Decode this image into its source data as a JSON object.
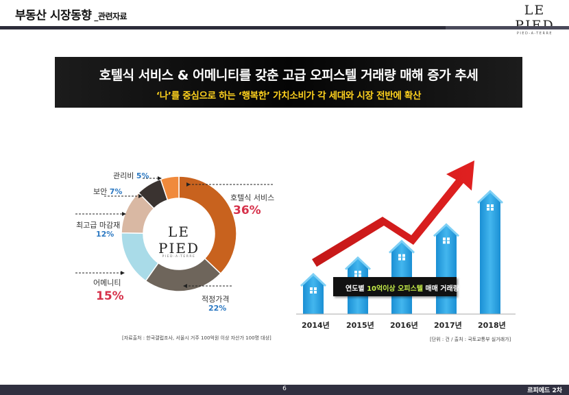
{
  "header": {
    "title": "부동산 시장동향",
    "subtitle": "_관련자료",
    "logo_word": "LE PIED",
    "logo_tag": "PIED-A-TERRE"
  },
  "banner": {
    "line1": "호텔식 서비스 & 어메니티를 갖춘 고급 오피스텔 거래량 매해 증가 추세",
    "line2": "‘나’를 중심으로 하는 ‘행복한’ 가치소비가 각 세대와 시장 전반에 확산"
  },
  "donut": {
    "center_logo_word": "LE PIED",
    "center_logo_tag": "PIED-A-TERRE",
    "source": "[자료출처 : 한국갤럽조사, 서울시 거주 100억원 이상 자산가 100명 대상]",
    "labels": {
      "hotel_name": "호텔식 서비스",
      "hotel_pct": "36%",
      "price_name": "적정가격",
      "price_pct": "22%",
      "amenity_name": "어메니티",
      "amenity_pct": "15%",
      "finish_name": "최고급 마감재",
      "finish_pct": "12%",
      "security_name": "보안",
      "security_pct": "7%",
      "mgmt_name": "관리비",
      "mgmt_pct": "5%"
    }
  },
  "bars": {
    "callout_pre": "연도별 ",
    "callout_hl": "10억이상 오피스텔",
    "callout_post": " 매매 거래량",
    "years": [
      "2014년",
      "2015년",
      "2016년",
      "2017년",
      "2018년"
    ],
    "source": "[단위 : 건 / 출처 : 국토교통부 실거래가]"
  },
  "chart_data": [
    {
      "type": "pie",
      "categories": [
        "호텔식 서비스",
        "적정가격",
        "어메니티",
        "최고급 마감재",
        "보안",
        "관리비"
      ],
      "values": [
        36,
        22,
        15,
        12,
        7,
        5
      ],
      "colors": [
        "#c8621e",
        "#6e655b",
        "#a9dbe8",
        "#d9b8a3",
        "#3a3330",
        "#f08a3c"
      ]
    },
    {
      "type": "bar",
      "categories": [
        "2014년",
        "2015년",
        "2016년",
        "2017년",
        "2018년"
      ],
      "series": [
        {
          "values": [
            1,
            2,
            3,
            4,
            6
          ]
        }
      ]
    }
  ],
  "footer": {
    "page": "6",
    "brand": "르피에드 2차"
  }
}
